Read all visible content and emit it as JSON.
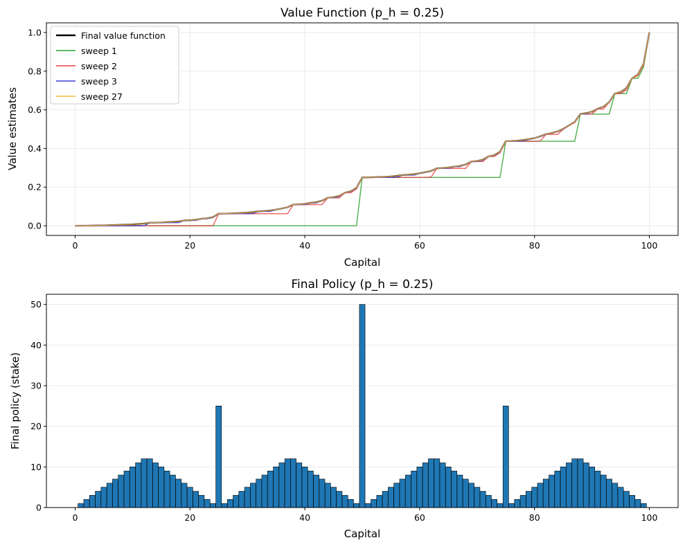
{
  "chart_data": [
    {
      "type": "line",
      "title": "Value Function (p_h = 0.25)",
      "xlabel": "Capital",
      "ylabel": "Value estimates",
      "xlim": [
        -5,
        105
      ],
      "ylim": [
        -0.05,
        1.05
      ],
      "xticks": [
        0,
        20,
        40,
        60,
        80,
        100
      ],
      "yticks": [
        0.0,
        0.2,
        0.4,
        0.6,
        0.8,
        1.0
      ],
      "ytick_labels": [
        "0.0",
        "0.2",
        "0.4",
        "0.6",
        "0.8",
        "1.0"
      ],
      "grid": true,
      "legend": "top-left",
      "series": [
        {
          "name": "Final value function",
          "color": "#000000",
          "key": "final"
        },
        {
          "name": "sweep 1",
          "color": "#2ca02c",
          "key": "s1"
        },
        {
          "name": "sweep 2",
          "color": "#e8423f",
          "key": "s2"
        },
        {
          "name": "sweep 3",
          "color": "#3f3fd8",
          "key": "s3"
        },
        {
          "name": "sweep 27",
          "color": "#f5b841",
          "key": "s27"
        }
      ]
    },
    {
      "type": "bar",
      "title": "Final Policy (p_h = 0.25)",
      "xlabel": "Capital",
      "ylabel": "Final policy (stake)",
      "xlim": [
        -5,
        105
      ],
      "ylim": [
        0,
        52.5
      ],
      "xticks": [
        0,
        20,
        40,
        60,
        80,
        100
      ],
      "yticks": [
        0,
        10,
        20,
        30,
        40,
        50
      ],
      "grid": true,
      "bar_color": "#1f77b4",
      "x": [
        1,
        2,
        3,
        4,
        5,
        6,
        7,
        8,
        9,
        10,
        11,
        12,
        13,
        14,
        15,
        16,
        17,
        18,
        19,
        20,
        21,
        22,
        23,
        24,
        25,
        26,
        27,
        28,
        29,
        30,
        31,
        32,
        33,
        34,
        35,
        36,
        37,
        38,
        39,
        40,
        41,
        42,
        43,
        44,
        45,
        46,
        47,
        48,
        49,
        50,
        51,
        52,
        53,
        54,
        55,
        56,
        57,
        58,
        59,
        60,
        61,
        62,
        63,
        64,
        65,
        66,
        67,
        68,
        69,
        70,
        71,
        72,
        73,
        74,
        75,
        76,
        77,
        78,
        79,
        80,
        81,
        82,
        83,
        84,
        85,
        86,
        87,
        88,
        89,
        90,
        91,
        92,
        93,
        94,
        95,
        96,
        97,
        98,
        99
      ],
      "values": [
        1,
        2,
        3,
        4,
        5,
        6,
        7,
        8,
        9,
        10,
        11,
        12,
        12,
        11,
        10,
        9,
        8,
        7,
        6,
        5,
        4,
        3,
        2,
        1,
        25,
        1,
        2,
        3,
        4,
        5,
        6,
        7,
        8,
        9,
        10,
        11,
        12,
        12,
        11,
        10,
        9,
        8,
        7,
        6,
        5,
        4,
        3,
        2,
        1,
        50,
        1,
        2,
        3,
        4,
        5,
        6,
        7,
        8,
        9,
        10,
        11,
        12,
        12,
        11,
        10,
        9,
        8,
        7,
        6,
        5,
        4,
        3,
        2,
        1,
        25,
        1,
        2,
        3,
        4,
        5,
        6,
        7,
        8,
        9,
        10,
        11,
        12,
        12,
        11,
        10,
        9,
        8,
        7,
        6,
        5,
        4,
        3,
        2,
        1
      ]
    }
  ]
}
